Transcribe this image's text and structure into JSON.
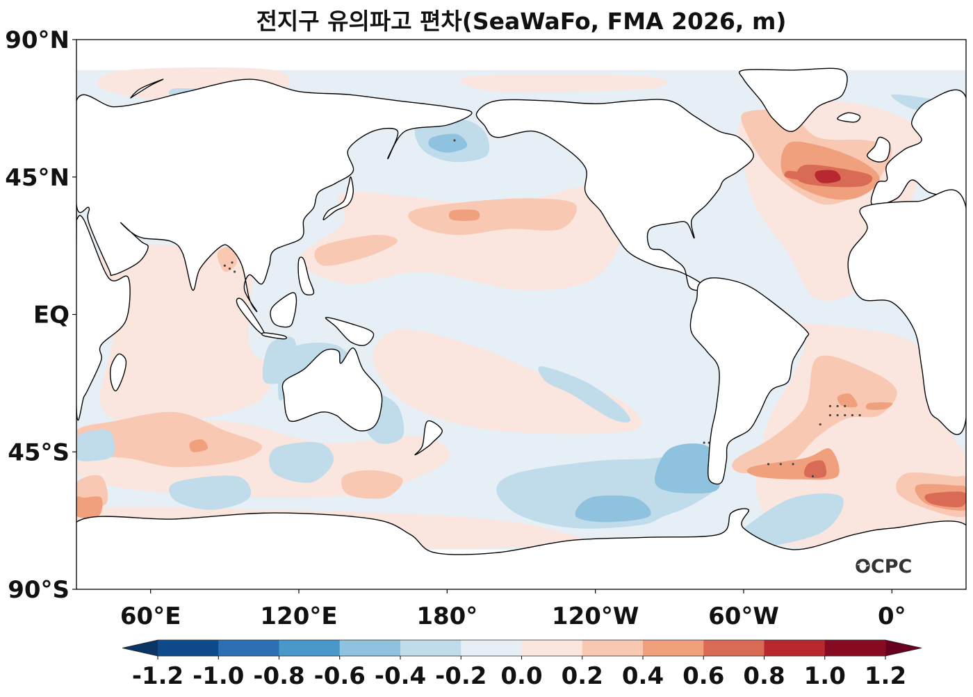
{
  "title": "전지구 유의파고 편차(SeaWaFo, FMA 2026, m)",
  "logo_text": "OCPC",
  "chart_data": {
    "type": "heatmap",
    "subtype": "filled-contour-map",
    "title": "전지구 유의파고 편차(SeaWaFo, FMA 2026, m)",
    "variable": "Significant wave height anomaly",
    "units": "m",
    "model": "SeaWaFo",
    "season": "FMA 2026",
    "projection": "PlateCarree, central longitude 210°",
    "lon_range": [
      30,
      390
    ],
    "lat_range": [
      -90,
      90
    ],
    "data_lat_extent": [
      -77,
      80
    ],
    "x_ticks": [
      {
        "lon": 60,
        "label": "60°E"
      },
      {
        "lon": 120,
        "label": "120°E"
      },
      {
        "lon": 180,
        "label": "180°"
      },
      {
        "lon": 240,
        "label": "120°W"
      },
      {
        "lon": 300,
        "label": "60°W"
      },
      {
        "lon": 360,
        "label": "0°"
      }
    ],
    "y_ticks": [
      {
        "lat": 90,
        "label": "90°N"
      },
      {
        "lat": 45,
        "label": "45°N"
      },
      {
        "lat": 0,
        "label": "EQ"
      },
      {
        "lat": -45,
        "label": "45°S"
      },
      {
        "lat": -90,
        "label": "90°S"
      }
    ],
    "colorbar": {
      "levels": [
        -1.2,
        -1.0,
        -0.8,
        -0.6,
        -0.4,
        -0.2,
        0.0,
        0.2,
        0.4,
        0.6,
        0.8,
        1.0,
        1.2
      ],
      "tick_labels": [
        "-1.2",
        "-1.0",
        "-0.8",
        "-0.6",
        "-0.4",
        "-0.2",
        "0.0",
        "0.2",
        "0.4",
        "0.6",
        "0.8",
        "1.0",
        "1.2"
      ],
      "colors": [
        "#0f4a8a",
        "#2c6fb4",
        "#4a98c9",
        "#8ec2de",
        "#c0dbea",
        "#e5eff5",
        "#fae6df",
        "#f9c8b3",
        "#f1a07e",
        "#d96a55",
        "#b7292f",
        "#860b22"
      ],
      "under_color": "#093463",
      "over_color": "#67001f",
      "extend": "both",
      "placement": "bottom"
    },
    "background_level": 0.0,
    "anomaly_regions": [
      {
        "name": "North Atlantic positive center",
        "peak_value": 0.8,
        "lon": 330,
        "lat": 46
      },
      {
        "name": "South Atlantic positive (40-50°S)",
        "peak_value": 0.6,
        "lon": 330,
        "lat": -50
      },
      {
        "name": "Southern Ocean off South Africa positive",
        "peak_value": 0.6,
        "lon": 382,
        "lat": -58
      },
      {
        "name": "South Indian Ocean positive",
        "peak_value": 0.4,
        "lon": 70,
        "lat": -40
      },
      {
        "name": "North Pacific subtropical positive",
        "peak_value": 0.4,
        "lon": 185,
        "lat": 32
      },
      {
        "name": "Bering Sea negative",
        "peak_value": -0.6,
        "lon": 178,
        "lat": 56
      },
      {
        "name": "Southeast Pacific negative",
        "peak_value": -0.6,
        "lon": 278,
        "lat": -52
      },
      {
        "name": "Southern Ocean south of Pacific negative",
        "peak_value": -0.6,
        "lon": 245,
        "lat": -63
      }
    ],
    "stippling": "dots mark statistically significant grid points (Bay of Bengal, South Atlantic, SE Pacific)"
  }
}
